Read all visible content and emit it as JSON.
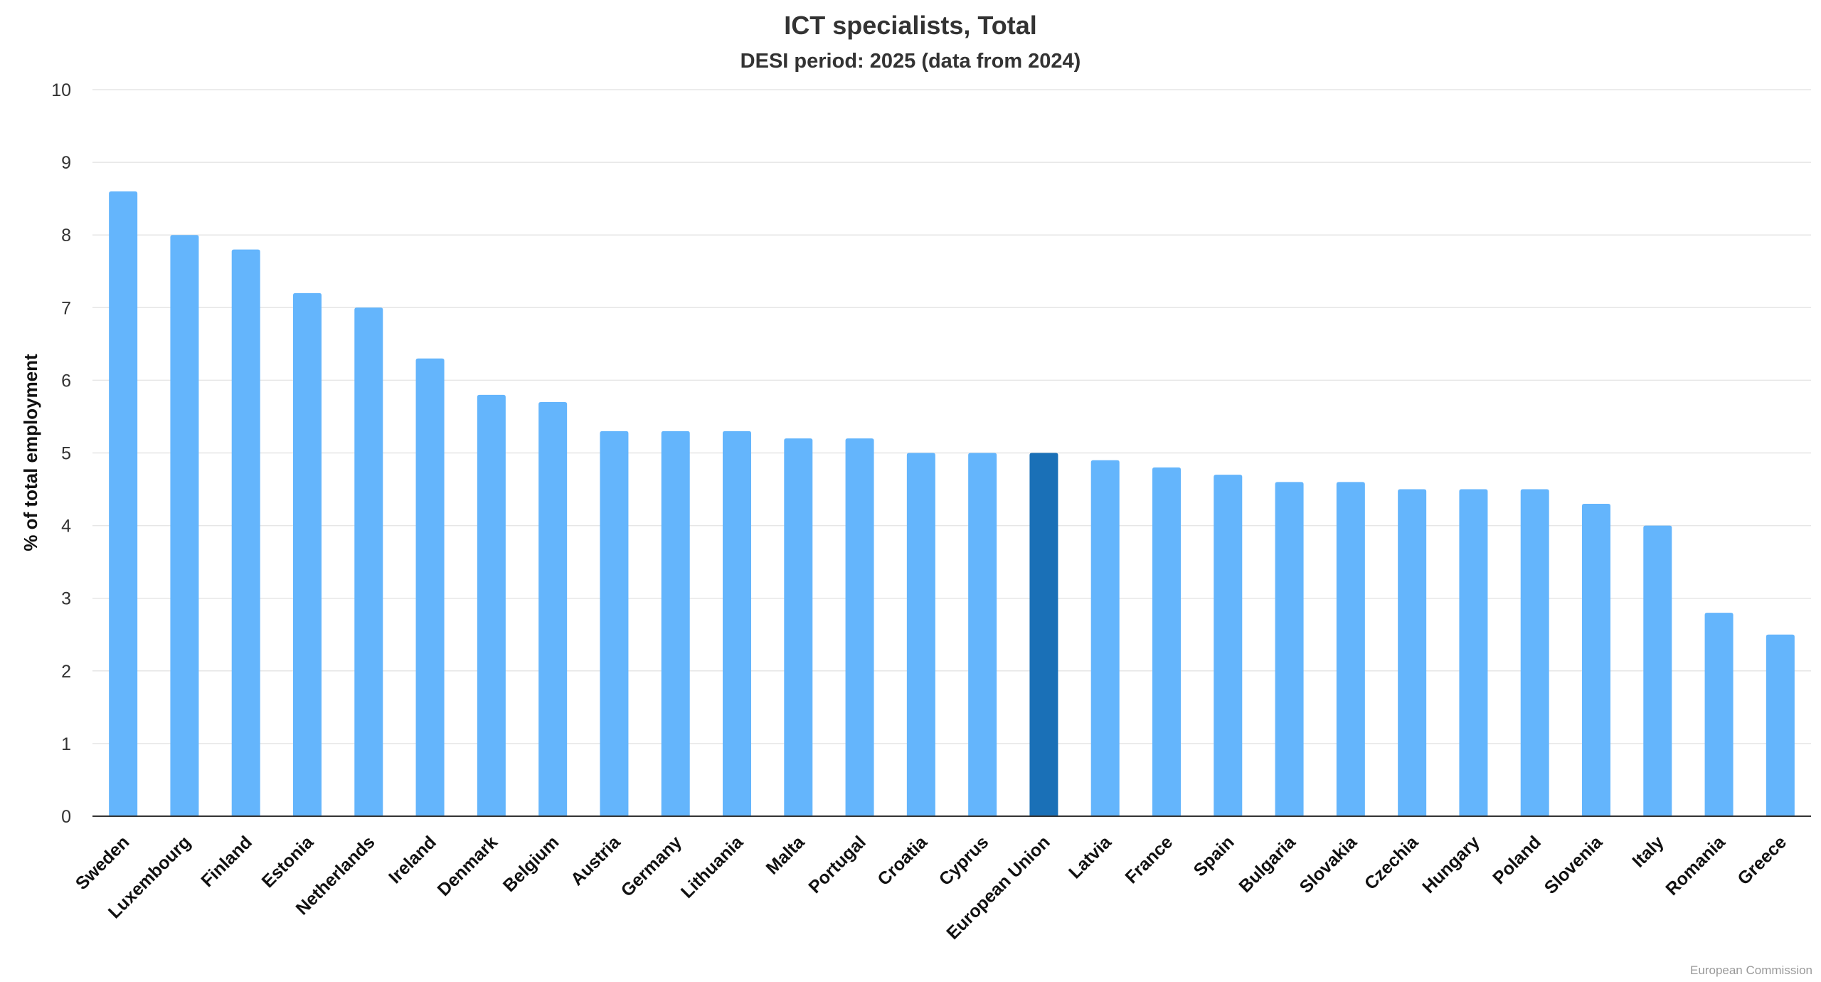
{
  "chart_data": {
    "type": "bar",
    "title": "ICT specialists, Total",
    "subtitle": "DESI period: 2025 (data from 2024)",
    "xlabel": "",
    "ylabel": "% of total employment",
    "ylim": [
      0,
      10
    ],
    "yticks": [
      "0",
      "1",
      "2",
      "3",
      "4",
      "5",
      "6",
      "7",
      "8",
      "9",
      "10"
    ],
    "grid": true,
    "legend": "none",
    "categories": [
      "Sweden",
      "Luxembourg",
      "Finland",
      "Estonia",
      "Netherlands",
      "Ireland",
      "Denmark",
      "Belgium",
      "Austria",
      "Germany",
      "Lithuania",
      "Malta",
      "Portugal",
      "Croatia",
      "Cyprus",
      "European Union",
      "Latvia",
      "France",
      "Spain",
      "Bulgaria",
      "Slovakia",
      "Czechia",
      "Hungary",
      "Poland",
      "Slovenia",
      "Italy",
      "Romania",
      "Greece"
    ],
    "values": [
      8.6,
      8.0,
      7.8,
      7.2,
      7.0,
      6.3,
      5.8,
      5.7,
      5.3,
      5.3,
      5.3,
      5.2,
      5.2,
      5.0,
      5.0,
      5.0,
      4.9,
      4.8,
      4.7,
      4.6,
      4.6,
      4.5,
      4.5,
      4.5,
      4.3,
      4.0,
      2.8,
      2.5
    ],
    "highlight_category": "European Union",
    "colors": {
      "bar": "#64b5fc",
      "highlight": "#1a70b7",
      "grid": "#e6e6e6",
      "axis": "#333333"
    }
  },
  "credits": "European Commission"
}
